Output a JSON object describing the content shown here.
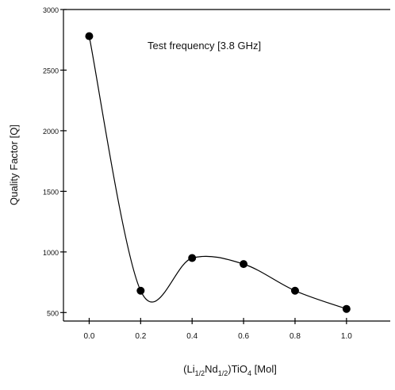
{
  "chart_data": {
    "type": "scatter",
    "annotation": "Test frequency  [3.8 GHz]",
    "y_label": "Quality Factor [Q]",
    "x_label": [
      "(Li",
      "1/2",
      "Nd",
      "1/2",
      ")TiO",
      "4",
      " [Mol]"
    ],
    "x": [
      0,
      0.2,
      0.4,
      0.6,
      0.8,
      1.0
    ],
    "series": [
      {
        "color": "#000000",
        "values": [
          2780,
          680,
          950,
          900,
          680,
          530
        ]
      }
    ],
    "xlim": [
      -0.1,
      1.17
    ],
    "ylim": [
      430,
      3000
    ],
    "xticks": [
      {
        "value": 0,
        "label": "0.0"
      },
      0.2,
      0.4,
      0.6,
      0.8,
      {
        "value": 1,
        "label": "1.0"
      }
    ],
    "yticks": [
      500,
      1000,
      1500,
      2000,
      2500,
      3000
    ],
    "smooth_line": true
  }
}
